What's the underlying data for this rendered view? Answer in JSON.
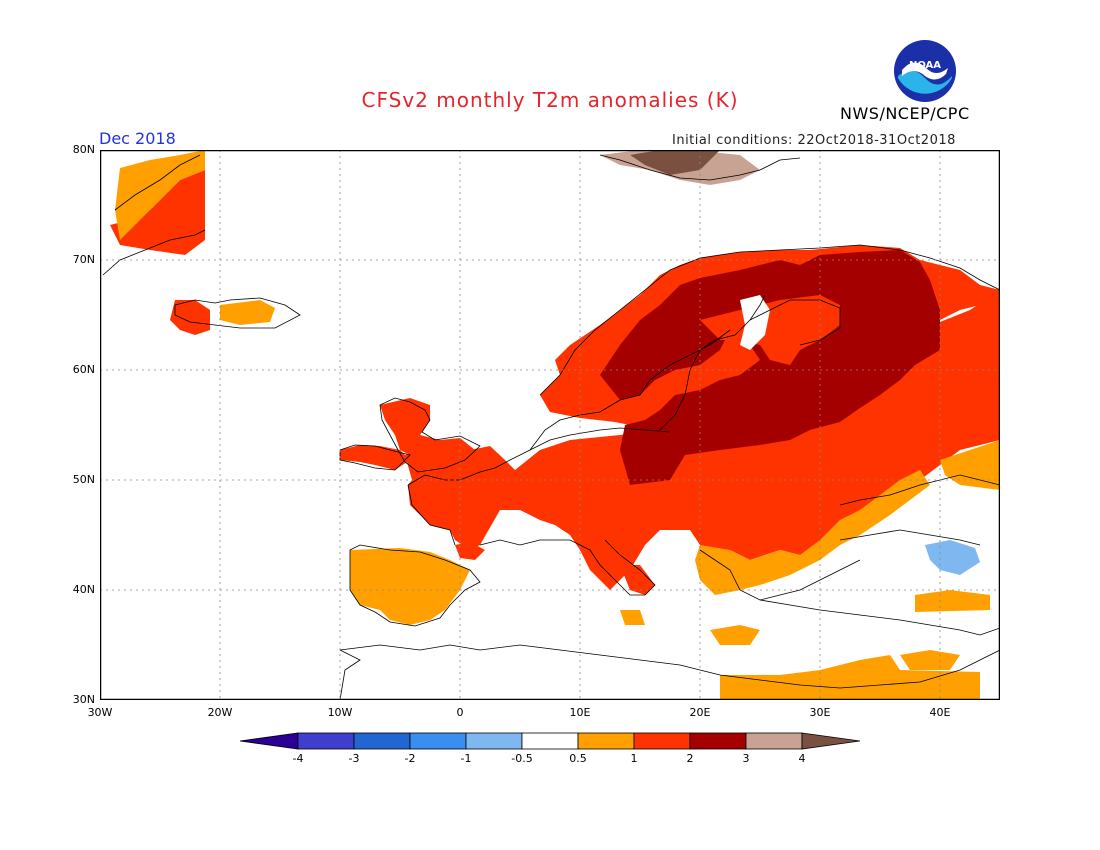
{
  "title": "CFSv2 monthly T2m anomalies (K)",
  "agency": "NWS/NCEP/CPC",
  "logo_text": "NOAA",
  "forecast_month": "Dec 2018",
  "initial_conditions": "Initial conditions: 22Oct2018-31Oct2018",
  "map": {
    "region": "Europe",
    "lon_range": [
      -30,
      45
    ],
    "lat_range": [
      30,
      80
    ],
    "lat_labels": [
      "80N",
      "70N",
      "60N",
      "50N",
      "40N",
      "30N"
    ],
    "lon_labels": [
      "30W",
      "20W",
      "10W",
      "0",
      "10E",
      "20E",
      "30E",
      "40E"
    ],
    "gridlines": "dotted",
    "anomaly_regions": [
      {
        "area": "Northern Scandinavia / Finland / Baltics / NW Russia",
        "class": "2 to 3"
      },
      {
        "area": "Poland / Central Europe core",
        "class": "2 to 3"
      },
      {
        "area": "Western and Central Europe, Western Russia",
        "class": "1 to 2"
      },
      {
        "area": "Iberia, Balkans, Southern Ukraine",
        "class": "0.5 to 1"
      },
      {
        "area": "Svalbard / Novaya Zemlya",
        "class": "3 to 4"
      },
      {
        "area": "Caucasus",
        "class": "-1 to -0.5"
      },
      {
        "area": "Mediterranean / North Africa",
        "class": "-0.5 to 0.5"
      }
    ]
  },
  "legend": {
    "labels": [
      "-4",
      "-3",
      "-2",
      "-1",
      "-0.5",
      "0.5",
      "1",
      "2",
      "3",
      "4"
    ],
    "colors": [
      "#2a0096",
      "#3f3fcf",
      "#2266d1",
      "#3a8ef0",
      "#7fb8f0",
      "#ffffff",
      "#ffa000",
      "#ff3300",
      "#a50000",
      "#c8a393",
      "#7a5040"
    ]
  }
}
